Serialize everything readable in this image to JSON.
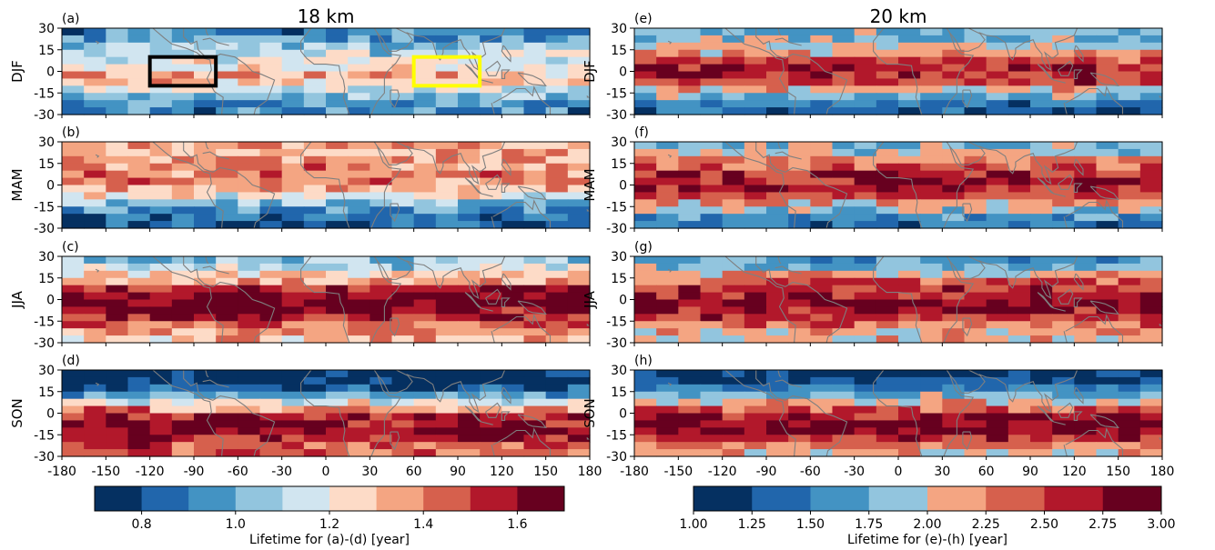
{
  "colors": {
    "colormap": [
      "#053061",
      "#2166ac",
      "#4393c3",
      "#92c5de",
      "#d1e5f0",
      "#fddbc7",
      "#f4a582",
      "#d6604d",
      "#b2182b",
      "#67001f"
    ],
    "coastline": "#7f7f7f",
    "box_pacific": "#000000",
    "box_indian": "#ffff00"
  },
  "chart_data": [
    {
      "type": "heatmap",
      "column_title": "18 km",
      "panels": [
        {
          "id": "a",
          "label": "(a)",
          "season": "DJF"
        },
        {
          "id": "b",
          "label": "(b)",
          "season": "MAM"
        },
        {
          "id": "c",
          "label": "(c)",
          "season": "JJA"
        },
        {
          "id": "d",
          "label": "(d)",
          "season": "SON"
        }
      ],
      "x_ticks": [
        "-180",
        "-150",
        "-120",
        "-90",
        "-60",
        "-30",
        "0",
        "30",
        "60",
        "90",
        "120",
        "150",
        "180"
      ],
      "y_ticks": [
        "30",
        "15",
        "0",
        "-15",
        "-30"
      ],
      "xlim": [
        -180,
        180
      ],
      "ylim": [
        -30,
        30
      ],
      "colorbar": {
        "label": "Lifetime for (a)-(d) [year]",
        "ticks": [
          "0.8",
          "1.0",
          "1.2",
          "1.4",
          "1.6"
        ],
        "range": [
          0.7,
          1.7
        ],
        "levels": 10
      },
      "latitude_profile_by_season": {
        "DJF": {
          "lat": [
            25,
            15,
            5,
            -5,
            -15,
            -25
          ],
          "typical_value": [
            0.92,
            1.08,
            1.23,
            1.33,
            1.1,
            0.92
          ]
        },
        "MAM": {
          "lat": [
            25,
            15,
            5,
            -5,
            -15,
            -25
          ],
          "typical_value": [
            1.35,
            1.38,
            1.42,
            1.3,
            0.95,
            0.85
          ]
        },
        "JJA": {
          "lat": [
            25,
            15,
            5,
            -5,
            -15,
            -25
          ],
          "typical_value": [
            1.05,
            1.3,
            1.62,
            1.66,
            1.5,
            1.32
          ]
        },
        "SON": {
          "lat": [
            25,
            15,
            5,
            -5,
            -15,
            -25
          ],
          "typical_value": [
            0.72,
            0.85,
            1.3,
            1.6,
            1.62,
            1.45
          ]
        }
      },
      "boxes": [
        {
          "name": "black box",
          "lon": [
            -120,
            -75
          ],
          "lat": [
            -10,
            10
          ]
        },
        {
          "name": "yellow box",
          "lon": [
            60,
            105
          ],
          "lat": [
            -10,
            10
          ]
        }
      ]
    },
    {
      "type": "heatmap",
      "column_title": "20 km",
      "panels": [
        {
          "id": "e",
          "label": "(e)",
          "season": "DJF"
        },
        {
          "id": "f",
          "label": "(f)",
          "season": "MAM"
        },
        {
          "id": "g",
          "label": "(g)",
          "season": "JJA"
        },
        {
          "id": "h",
          "label": "(h)",
          "season": "SON"
        }
      ],
      "x_ticks": [
        "-180",
        "-150",
        "-120",
        "-90",
        "-60",
        "-30",
        "0",
        "30",
        "60",
        "90",
        "120",
        "150",
        "180"
      ],
      "y_ticks": [
        "30",
        "15",
        "0",
        "-15",
        "-30"
      ],
      "xlim": [
        -180,
        180
      ],
      "ylim": [
        -30,
        30
      ],
      "colorbar": {
        "label": "Lifetime for (e)-(h) [year]",
        "ticks": [
          "1.00",
          "1.25",
          "1.50",
          "1.75",
          "2.00",
          "2.25",
          "2.50",
          "2.75",
          "3.00"
        ],
        "range": [
          1.0,
          3.0
        ],
        "levels": 8
      },
      "latitude_profile_by_season": {
        "DJF": {
          "lat": [
            25,
            15,
            5,
            -5,
            -15,
            -25
          ],
          "typical_value": [
            1.75,
            2.05,
            2.6,
            2.7,
            1.9,
            1.35
          ]
        },
        "MAM": {
          "lat": [
            25,
            15,
            5,
            -5,
            -15,
            -25
          ],
          "typical_value": [
            1.85,
            2.35,
            2.7,
            2.6,
            2.05,
            1.45
          ]
        },
        "JJA": {
          "lat": [
            25,
            15,
            5,
            -5,
            -15,
            -25
          ],
          "typical_value": [
            1.6,
            2.3,
            2.65,
            2.85,
            2.4,
            2.05
          ]
        },
        "SON": {
          "lat": [
            25,
            15,
            5,
            -5,
            -15,
            -25
          ],
          "typical_value": [
            1.15,
            1.6,
            2.3,
            2.85,
            2.7,
            2.1
          ]
        }
      }
    }
  ]
}
